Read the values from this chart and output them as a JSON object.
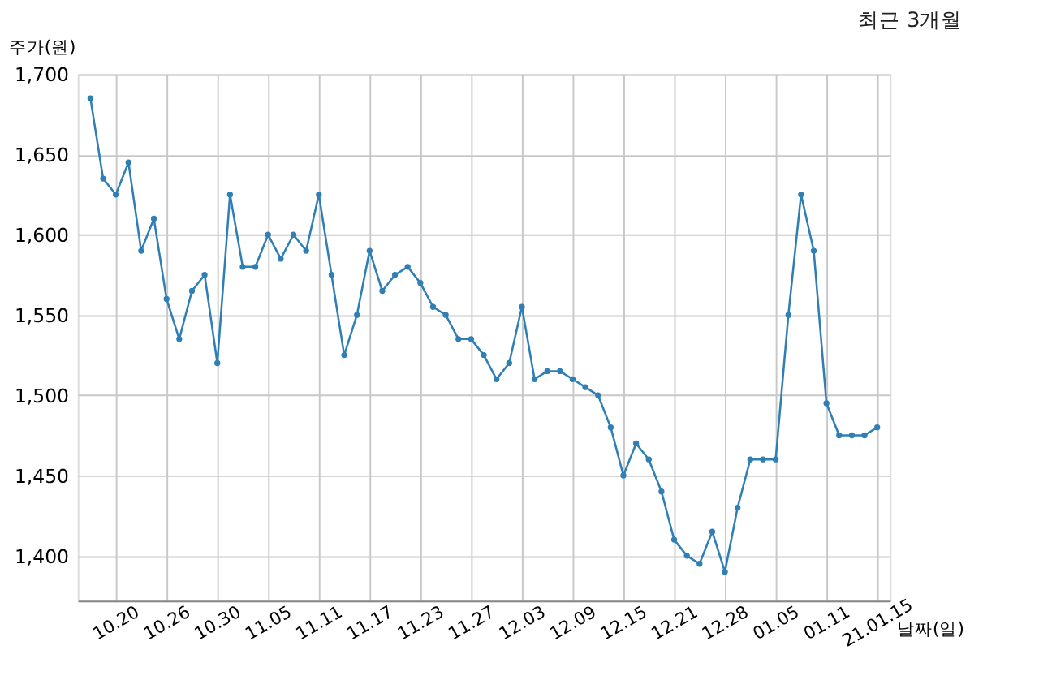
{
  "chart_data": {
    "type": "line",
    "title": "최근 3개월",
    "xlabel": "날짜(일)",
    "ylabel": "주가(원)",
    "categories": [
      null,
      null,
      "10.20",
      null,
      null,
      null,
      "10.26",
      null,
      null,
      null,
      "10.30",
      null,
      null,
      null,
      "11.05",
      null,
      null,
      null,
      "11.11",
      null,
      null,
      null,
      "11.17",
      null,
      null,
      null,
      "11.23",
      null,
      null,
      null,
      "11.27",
      null,
      null,
      null,
      "12.03",
      null,
      null,
      null,
      "12.09",
      null,
      null,
      null,
      "12.15",
      null,
      null,
      null,
      "12.21",
      null,
      null,
      null,
      "12.28",
      null,
      null,
      null,
      "01.05",
      null,
      null,
      null,
      "01.11",
      null,
      null,
      null,
      "21.01.15"
    ],
    "series": [
      {
        "color": "#2f7fb5",
        "values": [
          1685,
          1635,
          1625,
          1645,
          1590,
          1610,
          1560,
          1535,
          1565,
          1575,
          1520,
          1625,
          1580,
          1580,
          1600,
          1585,
          1600,
          1590,
          1625,
          1575,
          1525,
          1550,
          1590,
          1565,
          1575,
          1580,
          1570,
          1555,
          1550,
          1535,
          1535,
          1525,
          1510,
          1520,
          1555,
          1510,
          1515,
          1515,
          1510,
          1505,
          1500,
          1480,
          1450,
          1470,
          1460,
          1440,
          1410,
          1400,
          1395,
          1415,
          1390,
          1430,
          1460,
          1460,
          1460,
          1550,
          1625,
          1590,
          1495,
          1475,
          1475,
          1475,
          1480
        ]
      }
    ],
    "ylim": [
      1372,
      1700
    ],
    "yticks": [
      {
        "value": 1400,
        "label": "1,400"
      },
      {
        "value": 1450,
        "label": "1,450"
      },
      {
        "value": 1500,
        "label": "1,500"
      },
      {
        "value": 1550,
        "label": "1,550"
      },
      {
        "value": 1600,
        "label": "1,600"
      },
      {
        "value": 1650,
        "label": "1,650"
      },
      {
        "value": 1700,
        "label": "1,700"
      }
    ],
    "grid": true,
    "marker": "circle",
    "line_style": "solid",
    "legend": false
  }
}
